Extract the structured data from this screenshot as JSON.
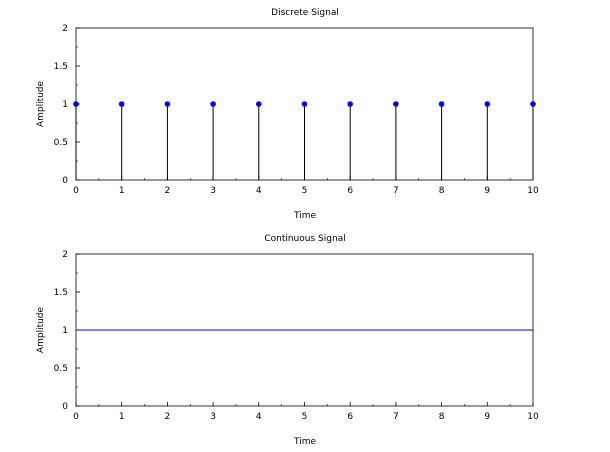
{
  "chart_data": [
    {
      "type": "stem",
      "title": "Discrete Signal",
      "xlabel": "Time",
      "ylabel": "Amplitude",
      "xlim": [
        0,
        10
      ],
      "ylim": [
        0,
        2
      ],
      "xticks": [
        "0",
        "1",
        "2",
        "3",
        "4",
        "5",
        "6",
        "7",
        "8",
        "9",
        "10"
      ],
      "yticks": [
        "0",
        "0.5",
        "1",
        "1.5",
        "2"
      ],
      "x": [
        0,
        1,
        2,
        3,
        4,
        5,
        6,
        7,
        8,
        9,
        10
      ],
      "y": [
        1,
        1,
        1,
        1,
        1,
        1,
        1,
        1,
        1,
        1,
        1
      ],
      "stem_color": "#000000",
      "marker_color": "#0000ff",
      "grid": false
    },
    {
      "type": "line",
      "title": "Continuous Signal",
      "xlabel": "Time",
      "ylabel": "Amplitude",
      "xlim": [
        0,
        10
      ],
      "ylim": [
        0,
        2
      ],
      "xticks": [
        "0",
        "1",
        "2",
        "3",
        "4",
        "5",
        "6",
        "7",
        "8",
        "9",
        "10"
      ],
      "yticks": [
        "0",
        "0.5",
        "1",
        "1.5",
        "2"
      ],
      "x": [
        0,
        10
      ],
      "y": [
        1,
        1
      ],
      "line_color": "#0000ff",
      "grid": false
    }
  ]
}
